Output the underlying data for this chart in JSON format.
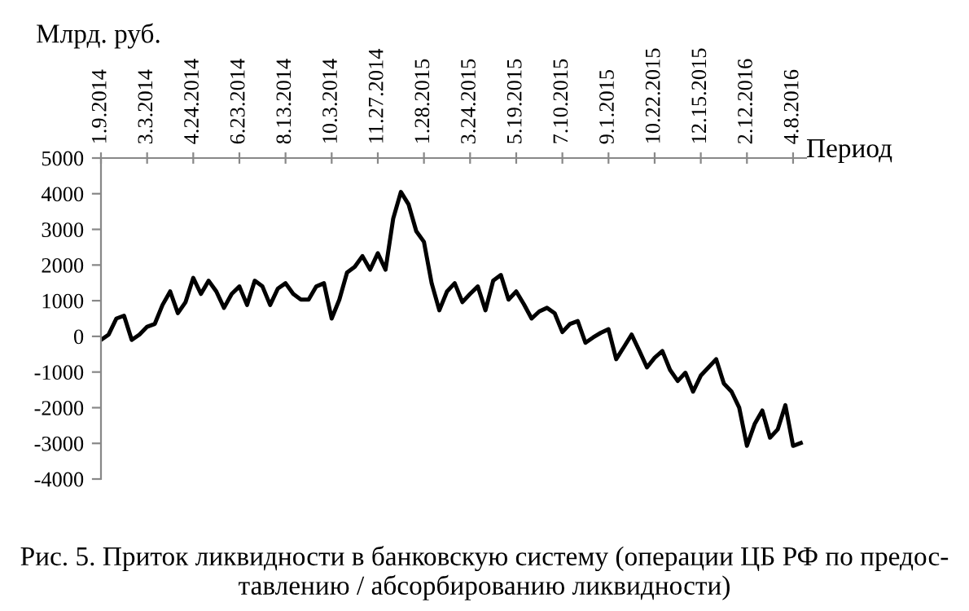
{
  "chart_data": {
    "type": "line",
    "xlabel": "Период",
    "ylabel": "Млрд. руб.",
    "annotations": [
      "Рис. 5. Приток ликвидности в банковскую систему (операции ЦБ РФ по предос-\nтавлению / абсорбированию ликвидности)"
    ],
    "categories": [
      "1.9.2014",
      null,
      null,
      null,
      null,
      null,
      "3.3.2014",
      null,
      null,
      null,
      null,
      null,
      "4.24.2014",
      null,
      null,
      null,
      null,
      null,
      "6.23.2014",
      null,
      null,
      null,
      null,
      null,
      "8.13.2014",
      null,
      null,
      null,
      null,
      null,
      "10.3.2014",
      null,
      null,
      null,
      null,
      null,
      "11.27.2014",
      null,
      null,
      null,
      null,
      null,
      "1.28.2015",
      null,
      null,
      null,
      null,
      null,
      "3.24.2015",
      null,
      null,
      null,
      null,
      null,
      "5.19.2015",
      null,
      null,
      null,
      null,
      null,
      "7.10.2015",
      null,
      null,
      null,
      null,
      null,
      "9.1.2015",
      null,
      null,
      null,
      null,
      null,
      "10.22.2015",
      null,
      null,
      null,
      null,
      null,
      "12.15.2015",
      null,
      null,
      null,
      null,
      null,
      "2.12.2016",
      null,
      null,
      null,
      null,
      null,
      "4.8.2016",
      null
    ],
    "series": [
      {
        "color": "#000000",
        "values": [
          -100,
          50,
          500,
          580,
          -100,
          50,
          270,
          350,
          880,
          1260,
          650,
          960,
          1640,
          1190,
          1560,
          1260,
          800,
          1190,
          1400,
          880,
          1560,
          1400,
          880,
          1340,
          1490,
          1190,
          1030,
          1030,
          1400,
          1490,
          500,
          1030,
          1790,
          1950,
          2250,
          1870,
          2330,
          1870,
          3300,
          4050,
          3700,
          2950,
          2650,
          1490,
          730,
          1260,
          1490,
          960,
          1190,
          1400,
          730,
          1560,
          1720,
          1030,
          1260,
          900,
          500,
          700,
          800,
          650,
          120,
          350,
          430,
          -180,
          -30,
          100,
          200,
          -640,
          -300,
          50,
          -400,
          -870,
          -600,
          -410,
          -940,
          -1250,
          -1020,
          -1550,
          -1100,
          -870,
          -640,
          -1320,
          -1550,
          -2000,
          -3070,
          -2460,
          -2080,
          -2840,
          -2610,
          -1930,
          -3070,
          -2990
        ]
      }
    ],
    "ylim": [
      -4000,
      5000
    ],
    "yticks": [
      -4000,
      -3000,
      -2000,
      -1000,
      0,
      1000,
      2000,
      3000,
      4000,
      5000
    ],
    "grid": false,
    "marker": "none",
    "line_style": "solid"
  }
}
